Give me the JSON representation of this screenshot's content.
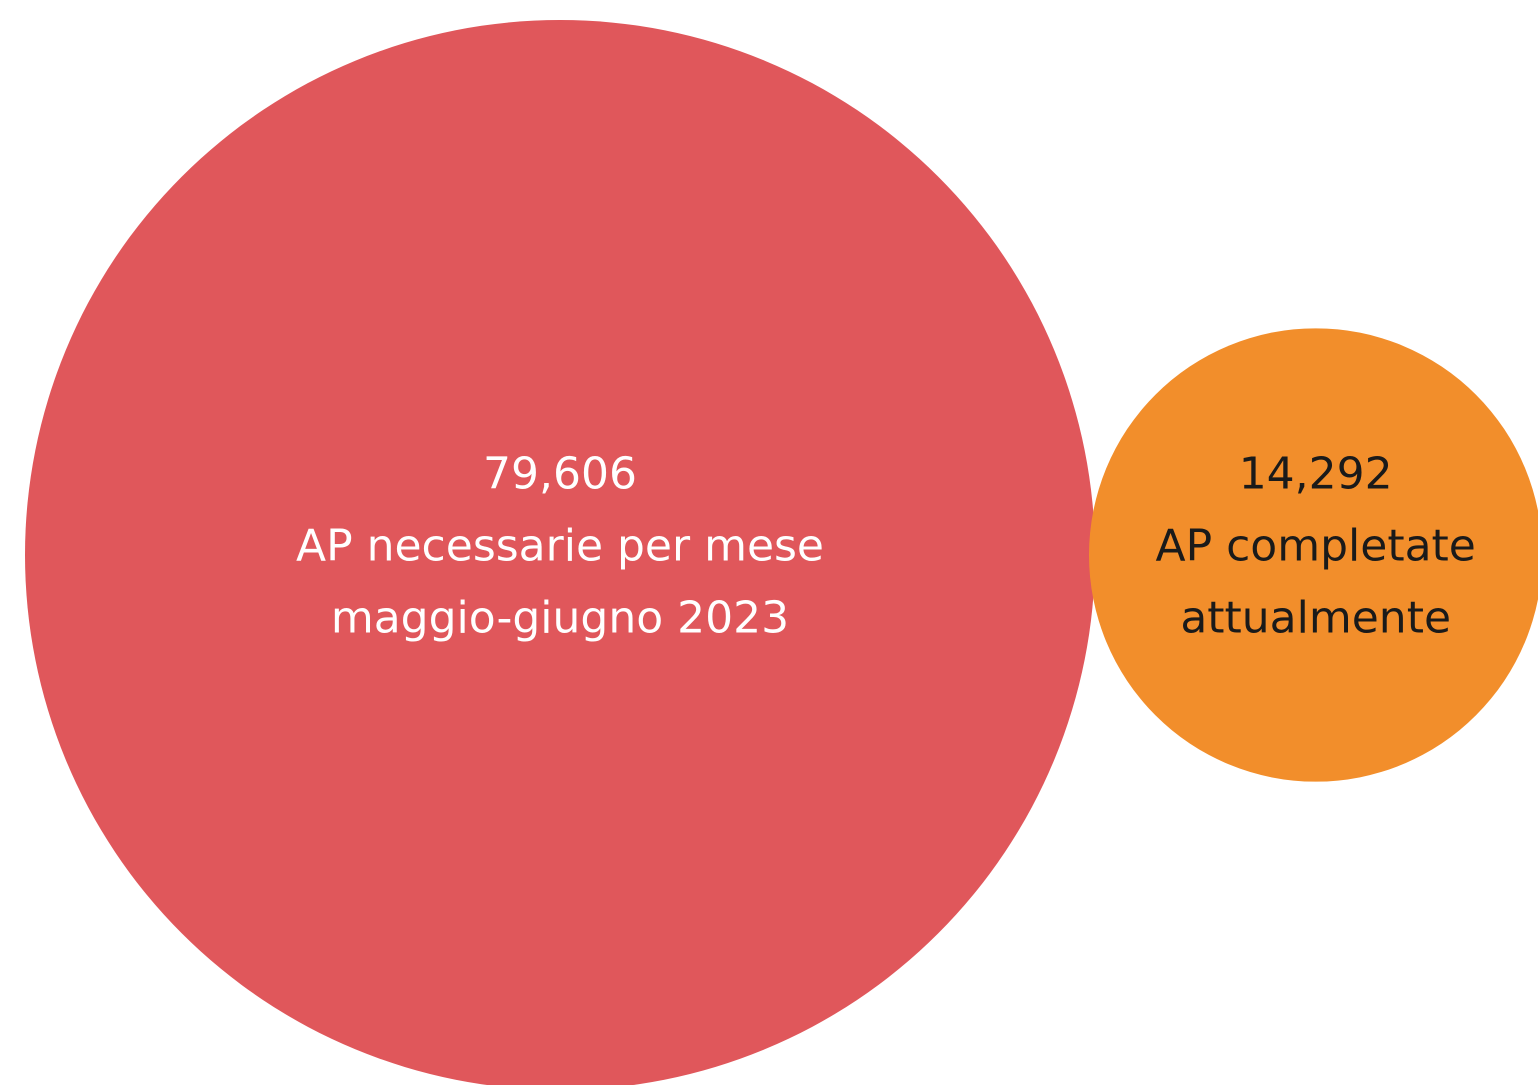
{
  "chart_data": {
    "type": "bubble",
    "title": "",
    "series": [
      {
        "value": 79606,
        "value_label": "79,606",
        "label_lines": [
          "AP necessarie per mese",
          "maggio-giugno 2023"
        ],
        "color": "#e0575b",
        "text_color": "#ffffff"
      },
      {
        "value": 14292,
        "value_label": "14,292",
        "label_lines": [
          "AP completate",
          "attualmente"
        ],
        "color": "#f28e2b",
        "text_color": "#1a1a1a"
      }
    ]
  }
}
